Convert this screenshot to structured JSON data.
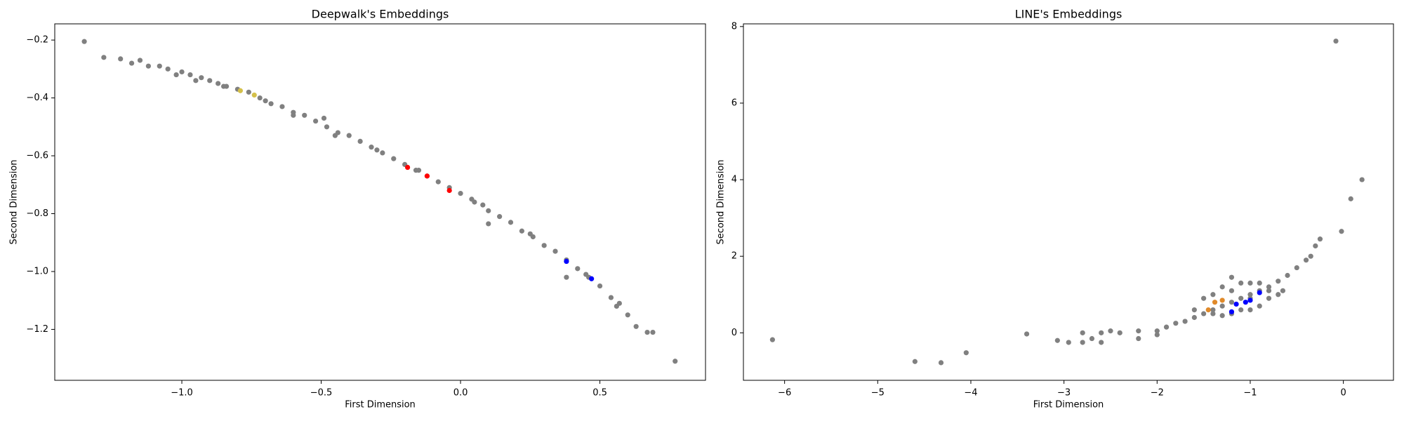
{
  "chart_data": [
    {
      "type": "scatter",
      "title": "Deepwalk's Embeddings",
      "x_label": "First Dimension",
      "y_label": "Second Dimension",
      "xlim": [
        -1.456,
        0.879
      ],
      "ylim": [
        -1.376,
        -0.144
      ],
      "xticks": [
        {
          "value": -1,
          "label": "−1.0"
        },
        {
          "value": -0.5,
          "label": "−0.5"
        },
        {
          "value": 0,
          "label": "0.0"
        },
        0.5
      ],
      "yticks": [
        {
          "value": -1.2,
          "label": "−1.2"
        },
        {
          "value": -1,
          "label": "−1.0"
        },
        {
          "value": -0.8,
          "label": "−0.8"
        },
        {
          "value": -0.6,
          "label": "−0.6"
        },
        {
          "value": -0.4,
          "label": "−0.4"
        },
        {
          "value": -0.2,
          "label": "−0.2"
        }
      ],
      "series": [
        {
          "color": "#808080",
          "x": [
            -1.35,
            -1.28,
            -1.22,
            -1.18,
            -1.15,
            -1.12,
            -1.08,
            -1.05,
            -1.0,
            -0.97,
            -0.93,
            -0.9,
            -0.87,
            -0.84,
            -0.8,
            -0.76,
            -0.72,
            -0.68,
            -0.64,
            -0.6,
            -0.56,
            -0.52,
            -0.48,
            -0.44,
            -0.4,
            -0.36,
            -0.32,
            -0.28,
            -0.24,
            -0.2,
            -0.16,
            -0.12,
            -0.08,
            -0.04,
            0.0,
            0.04,
            0.08,
            0.1,
            0.14,
            0.18,
            0.22,
            0.26,
            0.3,
            0.34,
            0.38,
            0.42,
            0.46,
            0.5,
            0.54,
            0.56,
            0.57,
            0.6,
            0.63,
            0.67,
            0.69,
            0.77,
            -0.49,
            0.38,
            0.1,
            -1.02,
            -0.95,
            -0.7,
            -0.45,
            -0.3,
            -0.15,
            0.05,
            0.25,
            0.45,
            -0.85,
            -0.6
          ],
          "y": [
            -0.205,
            -0.26,
            -0.265,
            -0.28,
            -0.27,
            -0.29,
            -0.29,
            -0.3,
            -0.31,
            -0.32,
            -0.33,
            -0.34,
            -0.35,
            -0.36,
            -0.37,
            -0.38,
            -0.4,
            -0.42,
            -0.43,
            -0.45,
            -0.46,
            -0.48,
            -0.5,
            -0.52,
            -0.53,
            -0.55,
            -0.57,
            -0.59,
            -0.61,
            -0.63,
            -0.65,
            -0.67,
            -0.69,
            -0.71,
            -0.73,
            -0.75,
            -0.77,
            -0.79,
            -0.81,
            -0.83,
            -0.86,
            -0.88,
            -0.91,
            -0.93,
            -0.96,
            -0.99,
            -1.02,
            -1.05,
            -1.09,
            -1.12,
            -1.11,
            -1.15,
            -1.19,
            -1.21,
            -1.21,
            -1.31,
            -0.47,
            -1.02,
            -0.835,
            -0.32,
            -0.34,
            -0.41,
            -0.53,
            -0.58,
            -0.65,
            -0.76,
            -0.87,
            -1.01,
            -0.36,
            -0.46
          ]
        },
        {
          "color": "#d4c04a",
          "x": [
            -0.79,
            -0.74
          ],
          "y": [
            -0.375,
            -0.39
          ]
        },
        {
          "color": "#ff0000",
          "x": [
            -0.19,
            -0.12,
            -0.04
          ],
          "y": [
            -0.64,
            -0.67,
            -0.72
          ]
        },
        {
          "color": "#0000ff",
          "x": [
            0.38,
            0.47
          ],
          "y": [
            -0.965,
            -1.025
          ]
        }
      ]
    },
    {
      "type": "scatter",
      "title": "LINE's Embeddings",
      "x_label": "First Dimension",
      "y_label": "Second Dimension",
      "xlim": [
        -6.442,
        0.538
      ],
      "ylim": [
        -1.24,
        8.07
      ],
      "xticks": [
        {
          "value": -6,
          "label": "−6"
        },
        {
          "value": -5,
          "label": "−5"
        },
        {
          "value": -4,
          "label": "−4"
        },
        {
          "value": -3,
          "label": "−3"
        },
        {
          "value": -2,
          "label": "−2"
        },
        {
          "value": -1,
          "label": "−1"
        },
        0
      ],
      "yticks": [
        0,
        2,
        4,
        6,
        8
      ],
      "series": [
        {
          "color": "#808080",
          "x": [
            -6.13,
            -4.6,
            -4.32,
            -4.05,
            -3.4,
            -3.07,
            -2.95,
            -0.08,
            0.2,
            0.08,
            -0.02,
            -0.25,
            -0.3,
            -2.8,
            -2.7,
            -2.6,
            -2.5,
            -2.4,
            -2.2,
            -2.0,
            -1.9,
            -1.8,
            -1.7,
            -1.6,
            -1.5,
            -1.4,
            -1.3,
            -1.2,
            -1.1,
            -1.0,
            -0.9,
            -0.8,
            -0.7,
            -0.6,
            -0.5,
            -0.4,
            -0.35,
            -1.4,
            -1.3,
            -1.2,
            -1.1,
            -1.0,
            -0.9,
            -1.5,
            -1.2,
            -1.3,
            -1.6,
            -1.0,
            -0.8,
            -0.7,
            -0.9,
            -1.1,
            -1.4,
            -1.2,
            -1.0,
            -0.8,
            -0.65,
            -2.6,
            -2.8,
            -2.2,
            -2.0
          ],
          "y": [
            -0.18,
            -0.75,
            -0.78,
            -0.52,
            -0.03,
            -0.2,
            -0.25,
            7.62,
            4.0,
            3.5,
            2.65,
            2.45,
            2.27,
            0.0,
            -0.15,
            0.0,
            0.05,
            0.0,
            0.05,
            0.05,
            0.15,
            0.25,
            0.3,
            0.4,
            0.5,
            0.6,
            0.7,
            0.8,
            0.9,
            1.0,
            1.1,
            1.2,
            1.35,
            1.5,
            1.7,
            1.9,
            2.0,
            1.0,
            1.2,
            1.45,
            1.3,
            0.6,
            0.7,
            0.9,
            0.5,
            0.45,
            0.6,
            1.3,
            0.9,
            1.0,
            1.3,
            0.6,
            0.5,
            1.1,
            0.9,
            1.1,
            1.1,
            -0.25,
            -0.25,
            -0.15,
            -0.05
          ]
        },
        {
          "color": "#e08a2a",
          "x": [
            -1.45,
            -1.38,
            -1.3
          ],
          "y": [
            0.6,
            0.8,
            0.85
          ]
        },
        {
          "color": "#0000ff",
          "x": [
            -1.2,
            -1.0,
            -0.9,
            -1.15,
            -1.05
          ],
          "y": [
            0.55,
            0.85,
            1.05,
            0.75,
            0.8
          ]
        }
      ]
    }
  ]
}
